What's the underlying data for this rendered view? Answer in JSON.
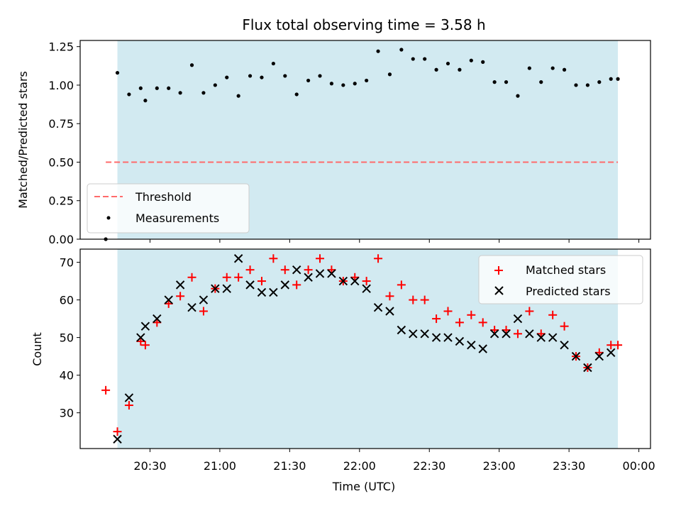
{
  "chart_data": [
    {
      "type": "scatter",
      "title": "Flux total observing time = 3.58 h",
      "xlabel": "",
      "ylabel": "Matched/Predicted stars",
      "ylim": [
        0,
        1.29
      ],
      "yticks": [
        "0.00",
        "0.25",
        "0.50",
        "0.75",
        "1.00",
        "1.25"
      ],
      "xlim_minutes": [
        1200,
        1445
      ],
      "shaded_span_minutes": [
        1216,
        1431
      ],
      "shaded_span_color": "#add8e6",
      "threshold": {
        "name": "Threshold",
        "value": 0.5,
        "x_minutes": [
          1211,
          1431
        ],
        "color": "#ff6b6b"
      },
      "series": [
        {
          "name": "Measurements",
          "color": "#000000",
          "x_minutes": [
            1211,
            1216,
            1221,
            1226,
            1228,
            1233,
            1238,
            1243,
            1248,
            1253,
            1258,
            1263,
            1268,
            1273,
            1278,
            1283,
            1288,
            1293,
            1298,
            1303,
            1308,
            1313,
            1318,
            1323,
            1328,
            1333,
            1338,
            1343,
            1348,
            1353,
            1358,
            1363,
            1368,
            1373,
            1378,
            1383,
            1388,
            1393,
            1398,
            1403,
            1408,
            1413,
            1418,
            1423,
            1428,
            1431
          ],
          "y": [
            0.0,
            1.08,
            0.94,
            0.98,
            0.9,
            0.98,
            0.98,
            0.95,
            1.13,
            0.95,
            1.0,
            1.05,
            0.93,
            1.06,
            1.05,
            1.14,
            1.06,
            0.94,
            1.03,
            1.06,
            1.01,
            1.0,
            1.01,
            1.03,
            1.22,
            1.07,
            1.23,
            1.17,
            1.17,
            1.1,
            1.14,
            1.1,
            1.16,
            1.15,
            1.02,
            1.02,
            0.93,
            1.11,
            1.02,
            1.11,
            1.1,
            1.0,
            1.0,
            1.02,
            1.04,
            1.04
          ]
        }
      ],
      "legend_position": "lower-left"
    },
    {
      "type": "scatter",
      "title": "",
      "xlabel": "Time (UTC)",
      "ylabel": "Count",
      "ylim": [
        20.5,
        73.5
      ],
      "yticks": [
        "30",
        "40",
        "50",
        "60",
        "70"
      ],
      "xlim_minutes": [
        1200,
        1445
      ],
      "xticks": [
        "20:30",
        "21:00",
        "21:30",
        "22:00",
        "22:30",
        "23:00",
        "23:30",
        "00:00"
      ],
      "xtick_minutes": [
        1230,
        1260,
        1290,
        1320,
        1350,
        1380,
        1410,
        1440
      ],
      "shaded_span_minutes": [
        1216,
        1431
      ],
      "shaded_span_color": "#add8e6",
      "series": [
        {
          "name": "Matched stars",
          "marker": "+",
          "color": "#ff0000",
          "x_minutes": [
            1211,
            1216,
            1221,
            1226,
            1228,
            1233,
            1238,
            1243,
            1248,
            1253,
            1258,
            1263,
            1268,
            1273,
            1278,
            1283,
            1288,
            1293,
            1298,
            1303,
            1308,
            1313,
            1318,
            1323,
            1328,
            1333,
            1338,
            1343,
            1348,
            1353,
            1358,
            1363,
            1368,
            1373,
            1378,
            1383,
            1388,
            1393,
            1398,
            1403,
            1408,
            1413,
            1418,
            1423,
            1428,
            1431
          ],
          "y": [
            36,
            25,
            32,
            49,
            48,
            54,
            59,
            61,
            66,
            57,
            63,
            66,
            66,
            68,
            65,
            71,
            68,
            64,
            68,
            71,
            68,
            65,
            66,
            65,
            71,
            61,
            64,
            60,
            60,
            55,
            57,
            54,
            56,
            54,
            52,
            52,
            51,
            57,
            51,
            56,
            53,
            45,
            42,
            46,
            48,
            48
          ]
        },
        {
          "name": "Predicted stars",
          "marker": "x",
          "color": "#000000",
          "x_minutes": [
            1216,
            1221,
            1226,
            1228,
            1233,
            1238,
            1243,
            1248,
            1253,
            1258,
            1263,
            1268,
            1273,
            1278,
            1283,
            1288,
            1293,
            1298,
            1303,
            1308,
            1313,
            1318,
            1323,
            1328,
            1333,
            1338,
            1343,
            1348,
            1353,
            1358,
            1363,
            1368,
            1373,
            1378,
            1383,
            1388,
            1393,
            1398,
            1403,
            1408,
            1413,
            1418,
            1423,
            1428
          ],
          "y": [
            23,
            34,
            50,
            53,
            55,
            60,
            64,
            58,
            60,
            63,
            63,
            71,
            64,
            62,
            62,
            64,
            68,
            66,
            67,
            67,
            65,
            65,
            63,
            58,
            57,
            52,
            51,
            51,
            50,
            50,
            49,
            48,
            47,
            51,
            51,
            55,
            51,
            50,
            50,
            48,
            45,
            42,
            45,
            46
          ]
        }
      ],
      "legend_position": "upper-right"
    }
  ]
}
